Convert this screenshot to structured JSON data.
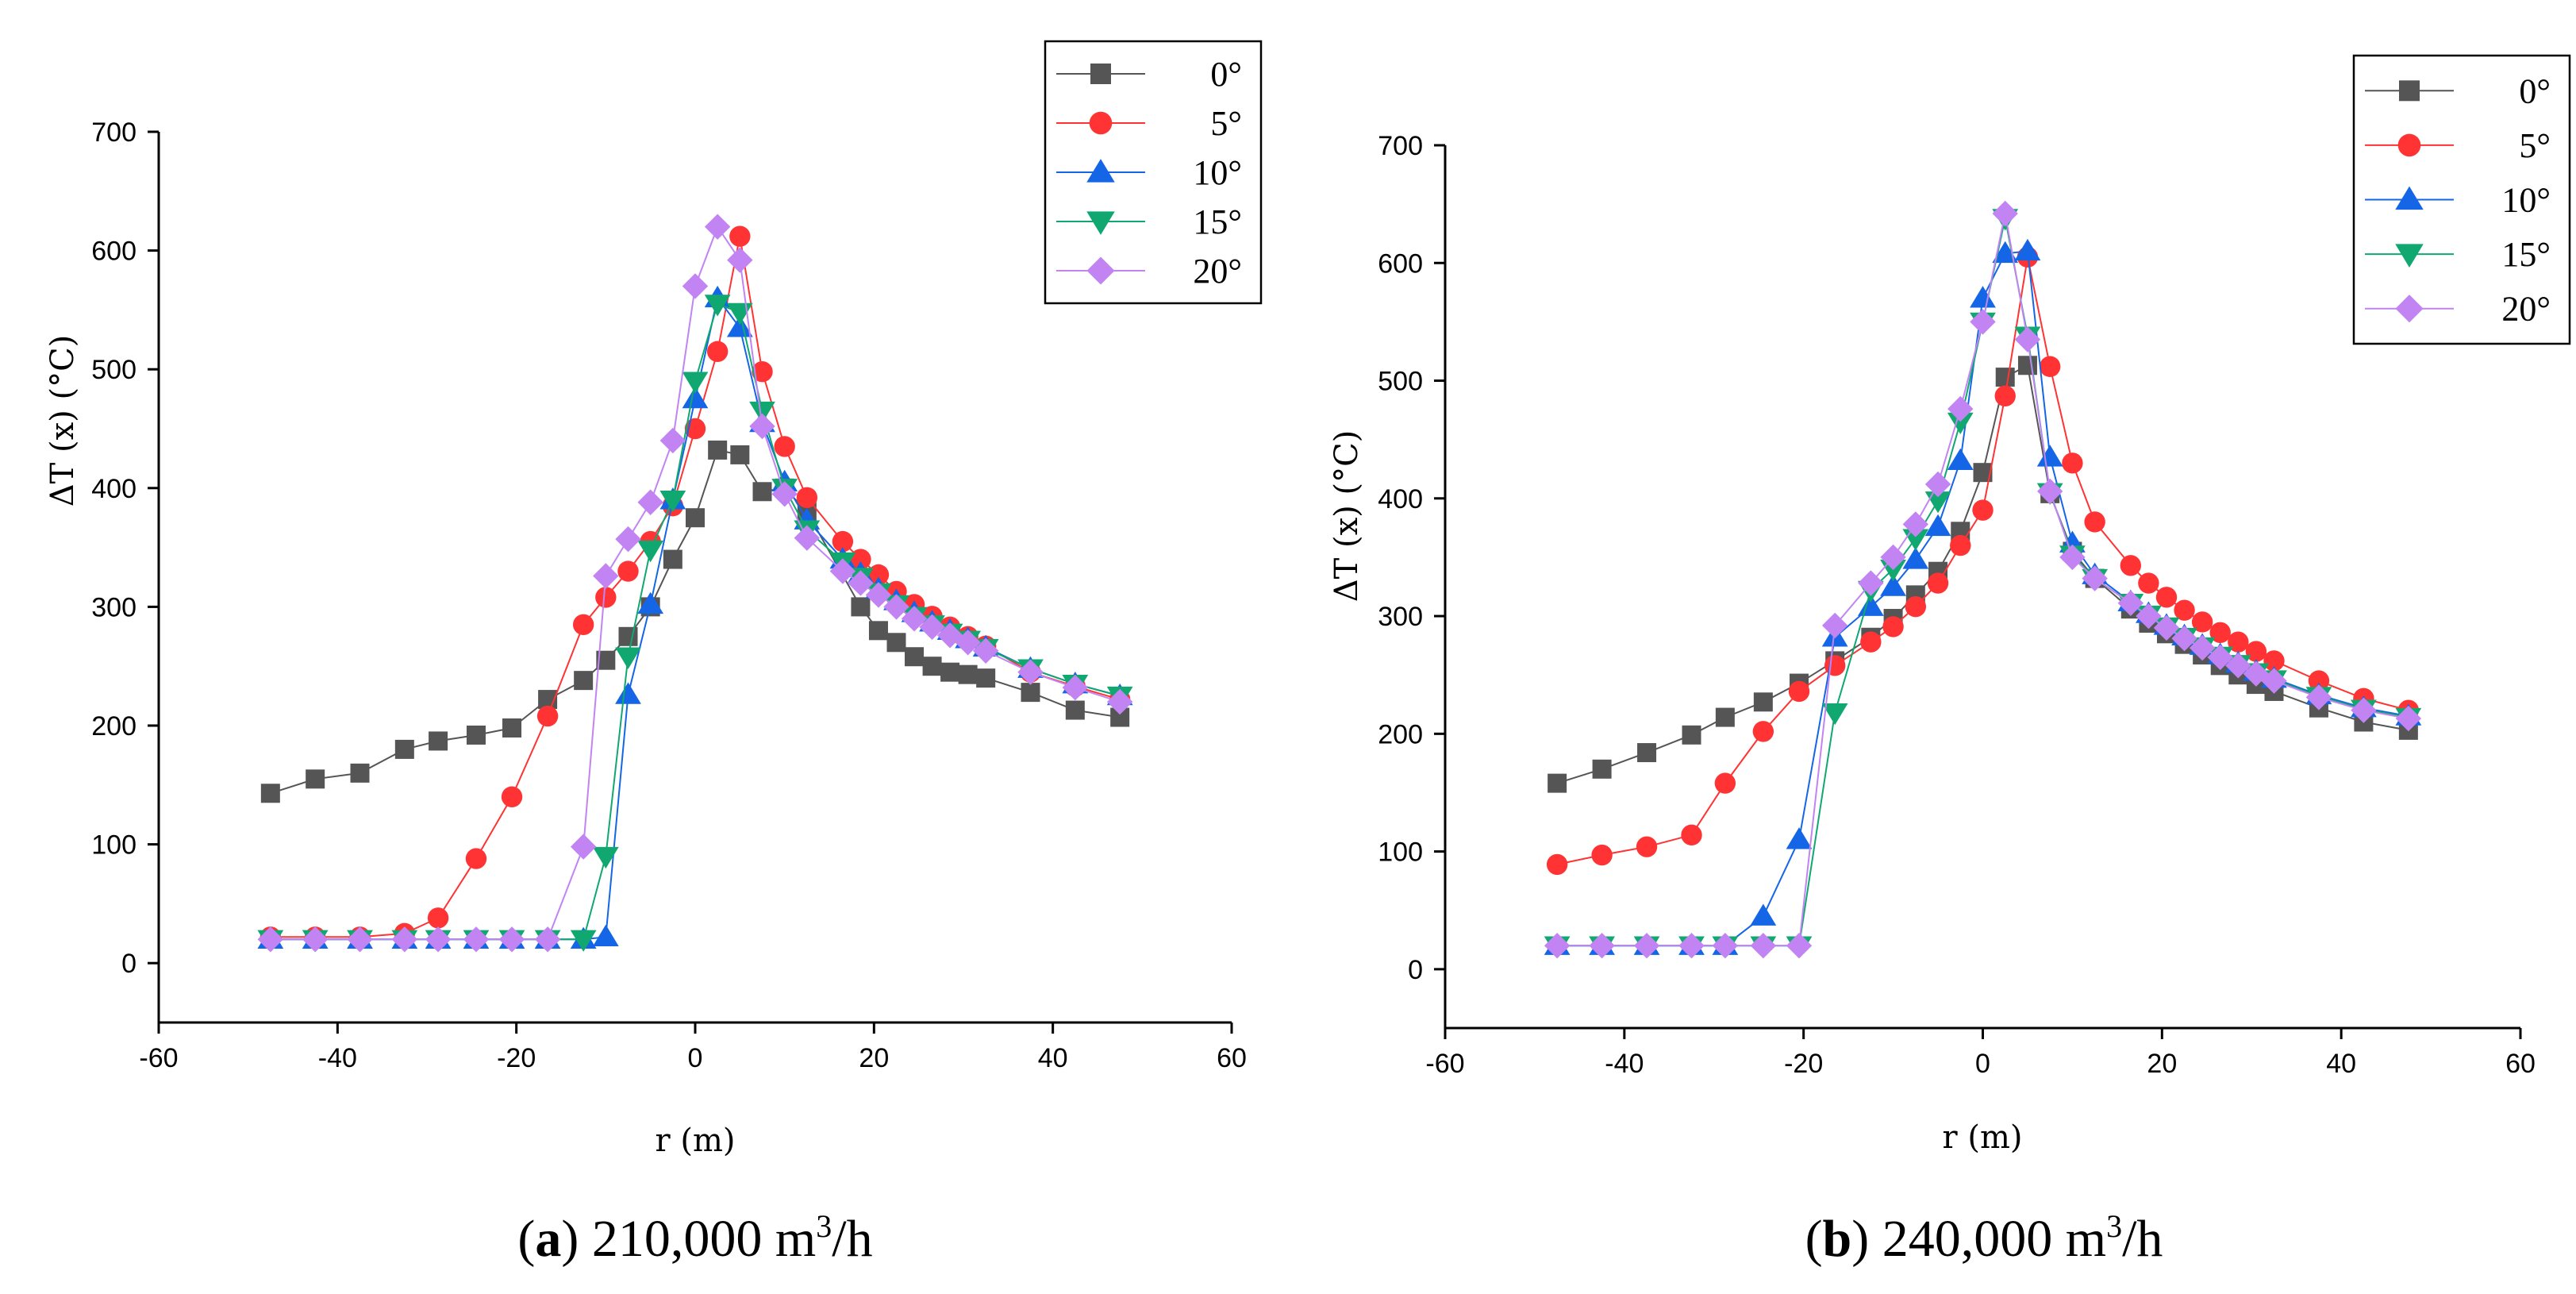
{
  "series_style": [
    {
      "name": "0°",
      "color": "#555555",
      "marker": "square"
    },
    {
      "name": "5°",
      "color": "#ff3333",
      "marker": "circle"
    },
    {
      "name": "10°",
      "color": "#1466e6",
      "marker": "triangle-up"
    },
    {
      "name": "15°",
      "color": "#10a870",
      "marker": "triangle-down"
    },
    {
      "name": "20°",
      "color": "#c184f2",
      "marker": "diamond"
    }
  ],
  "chart_data": [
    {
      "type": "line",
      "title": "",
      "caption": {
        "label": "a",
        "text": "210,000 m",
        "superscript": "3",
        "suffix": "/h"
      },
      "xlabel": "r (m)",
      "ylabel": "ΔT (x) (°C)",
      "xlim": [
        -60,
        60
      ],
      "ylim": [
        -50,
        700
      ],
      "xticks": [
        -60,
        -40,
        -20,
        0,
        20,
        40,
        60
      ],
      "yticks": [
        0,
        100,
        200,
        300,
        400,
        500,
        600,
        700
      ],
      "legend": [
        "0°",
        "5°",
        "10°",
        "15°",
        "20°"
      ],
      "series": [
        {
          "name": "0°",
          "x": [
            -47.5,
            -42.5,
            -37.5,
            -32.5,
            -28.75,
            -24.5,
            -20.5,
            -16.5,
            -12.5,
            -10,
            -7.5,
            -5,
            -2.5,
            0,
            2.5,
            5,
            7.5,
            10,
            12.5,
            18.5,
            20.5,
            22.5,
            24.5,
            26.5,
            28.5,
            30.5,
            32.5,
            37.5,
            42.5,
            47.5
          ],
          "y": [
            143,
            155,
            160,
            180,
            187,
            192,
            198,
            222,
            238,
            255,
            275,
            300,
            340,
            375,
            432,
            428,
            397,
            400,
            380,
            300,
            280,
            270,
            258,
            250,
            245,
            243,
            240,
            228,
            213,
            207
          ]
        },
        {
          "name": "5°",
          "x": [
            -47.5,
            -42.5,
            -37.5,
            -32.5,
            -28.75,
            -24.5,
            -20.5,
            -16.5,
            -12.5,
            -10,
            -7.5,
            -5,
            -2.5,
            0,
            2.5,
            5,
            7.5,
            10,
            12.5,
            16.5,
            18.5,
            20.5,
            22.5,
            24.5,
            26.5,
            28.5,
            30.5,
            32.5,
            37.5,
            42.5,
            47.5
          ],
          "y": [
            22,
            22,
            22,
            25,
            38,
            88,
            140,
            208,
            285,
            308,
            330,
            355,
            385,
            450,
            515,
            612,
            498,
            435,
            392,
            355,
            340,
            327,
            313,
            302,
            292,
            283,
            275,
            267,
            245,
            233,
            222
          ]
        },
        {
          "name": "10°",
          "x": [
            -47.5,
            -42.5,
            -37.5,
            -32.5,
            -28.75,
            -24.5,
            -20.5,
            -16.5,
            -12.5,
            -10,
            -7.5,
            -5,
            -2.5,
            0,
            2.5,
            5,
            7.5,
            10,
            12.5,
            16.5,
            18.5,
            20.5,
            22.5,
            24.5,
            26.5,
            28.5,
            30.5,
            32.5,
            37.5,
            42.5,
            47.5
          ],
          "y": [
            20,
            20,
            20,
            20,
            20,
            20,
            20,
            20,
            20,
            22,
            226,
            302,
            390,
            475,
            560,
            535,
            455,
            405,
            373,
            340,
            328,
            315,
            305,
            295,
            287,
            280,
            273,
            266,
            248,
            235,
            225
          ]
        },
        {
          "name": "15°",
          "x": [
            -47.5,
            -42.5,
            -37.5,
            -32.5,
            -28.75,
            -24.5,
            -20.5,
            -16.5,
            -12.5,
            -10,
            -7.5,
            -5,
            -2.5,
            0,
            2.5,
            5,
            7.5,
            10,
            12.5,
            16.5,
            18.5,
            20.5,
            22.5,
            24.5,
            26.5,
            28.5,
            30.5,
            32.5,
            37.5,
            42.5,
            47.5
          ],
          "y": [
            20,
            20,
            20,
            20,
            20,
            20,
            20,
            20,
            20,
            90,
            258,
            348,
            390,
            490,
            555,
            548,
            465,
            400,
            365,
            338,
            325,
            312,
            302,
            292,
            285,
            278,
            272,
            265,
            248,
            235,
            225
          ]
        },
        {
          "name": "20°",
          "x": [
            -47.5,
            -42.5,
            -37.5,
            -32.5,
            -28.75,
            -24.5,
            -20.5,
            -16.5,
            -12.5,
            -10,
            -7.5,
            -5,
            -2.5,
            0,
            2.5,
            5,
            7.5,
            10,
            12.5,
            16.5,
            18.5,
            20.5,
            22.5,
            24.5,
            26.5,
            28.5,
            30.5,
            32.5,
            37.5,
            42.5,
            47.5
          ],
          "y": [
            20,
            20,
            20,
            20,
            20,
            20,
            20,
            20,
            98,
            326,
            357,
            388,
            440,
            570,
            620,
            592,
            452,
            395,
            358,
            330,
            320,
            310,
            300,
            290,
            283,
            276,
            270,
            263,
            245,
            232,
            220
          ]
        }
      ]
    },
    {
      "type": "line",
      "title": "",
      "caption": {
        "label": "b",
        "text": "240,000 m",
        "superscript": "3",
        "suffix": "/h"
      },
      "xlabel": "r (m)",
      "ylabel": "ΔT (x) (°C)",
      "xlim": [
        -60,
        60
      ],
      "ylim": [
        -50,
        700
      ],
      "xticks": [
        -60,
        -40,
        -20,
        0,
        20,
        40,
        60
      ],
      "yticks": [
        0,
        100,
        200,
        300,
        400,
        500,
        600,
        700
      ],
      "legend": [
        "0°",
        "5°",
        "10°",
        "15°",
        "20°"
      ],
      "series": [
        {
          "name": "0°",
          "x": [
            -47.5,
            -42.5,
            -37.5,
            -32.5,
            -28.75,
            -24.5,
            -20.5,
            -16.5,
            -12.5,
            -10,
            -7.5,
            -5,
            -2.5,
            0,
            2.5,
            5,
            7.5,
            10,
            12.5,
            16.5,
            18.5,
            20.5,
            22.5,
            24.5,
            26.5,
            28.5,
            30.5,
            32.5,
            37.5,
            42.5,
            47.5
          ],
          "y": [
            158,
            170,
            184,
            199,
            214,
            227,
            243,
            262,
            282,
            298,
            318,
            338,
            372,
            422,
            503,
            513,
            404,
            355,
            332,
            306,
            294,
            285,
            276,
            267,
            258,
            250,
            242,
            236,
            222,
            210,
            203
          ]
        },
        {
          "name": "5°",
          "x": [
            -47.5,
            -42.5,
            -37.5,
            -32.5,
            -28.75,
            -24.5,
            -20.5,
            -16.5,
            -12.5,
            -10,
            -7.5,
            -5,
            -2.5,
            0,
            2.5,
            5,
            7.5,
            10,
            12.5,
            16.5,
            18.5,
            20.5,
            22.5,
            24.5,
            26.5,
            28.5,
            30.5,
            32.5,
            37.5,
            42.5,
            47.5
          ],
          "y": [
            89,
            97,
            104,
            114,
            158,
            202,
            236,
            258,
            278,
            291,
            308,
            328,
            360,
            390,
            487,
            605,
            512,
            430,
            380,
            343,
            328,
            316,
            305,
            295,
            286,
            278,
            270,
            262,
            245,
            230,
            220
          ]
        },
        {
          "name": "10°",
          "x": [
            -47.5,
            -42.5,
            -37.5,
            -32.5,
            -28.75,
            -24.5,
            -20.5,
            -16.5,
            -12.5,
            -10,
            -7.5,
            -5,
            -2.5,
            0,
            2.5,
            5,
            7.5,
            10,
            12.5,
            16.5,
            18.5,
            20.5,
            22.5,
            24.5,
            26.5,
            28.5,
            30.5,
            32.5,
            37.5,
            42.5,
            47.5
          ],
          "y": [
            20,
            20,
            20,
            20,
            20,
            45,
            110,
            282,
            308,
            325,
            348,
            376,
            432,
            570,
            608,
            610,
            435,
            362,
            335,
            312,
            302,
            292,
            283,
            275,
            267,
            260,
            253,
            247,
            233,
            222,
            215
          ]
        },
        {
          "name": "15°",
          "x": [
            -47.5,
            -42.5,
            -37.5,
            -32.5,
            -28.75,
            -24.5,
            -20.5,
            -16.5,
            -12.5,
            -10,
            -7.5,
            -5,
            -2.5,
            0,
            2.5,
            5,
            7.5,
            10,
            12.5,
            16.5,
            18.5,
            20.5,
            22.5,
            24.5,
            26.5,
            28.5,
            30.5,
            32.5,
            37.5,
            42.5,
            47.5
          ],
          "y": [
            20,
            20,
            20,
            20,
            20,
            20,
            20,
            218,
            322,
            340,
            366,
            398,
            465,
            550,
            638,
            538,
            405,
            352,
            332,
            311,
            301,
            291,
            282,
            274,
            266,
            259,
            252,
            246,
            232,
            221,
            214
          ]
        },
        {
          "name": "20°",
          "x": [
            -47.5,
            -42.5,
            -37.5,
            -32.5,
            -28.75,
            -24.5,
            -20.5,
            -16.5,
            -12.5,
            -10,
            -7.5,
            -5,
            -2.5,
            0,
            2.5,
            5,
            7.5,
            10,
            12.5,
            16.5,
            18.5,
            20.5,
            22.5,
            24.5,
            26.5,
            28.5,
            30.5,
            32.5,
            37.5,
            42.5,
            47.5
          ],
          "y": [
            20,
            20,
            20,
            20,
            20,
            20,
            20,
            292,
            328,
            350,
            378,
            412,
            476,
            550,
            642,
            535,
            406,
            350,
            332,
            311,
            300,
            290,
            281,
            273,
            265,
            258,
            251,
            245,
            231,
            220,
            213
          ]
        }
      ]
    }
  ]
}
